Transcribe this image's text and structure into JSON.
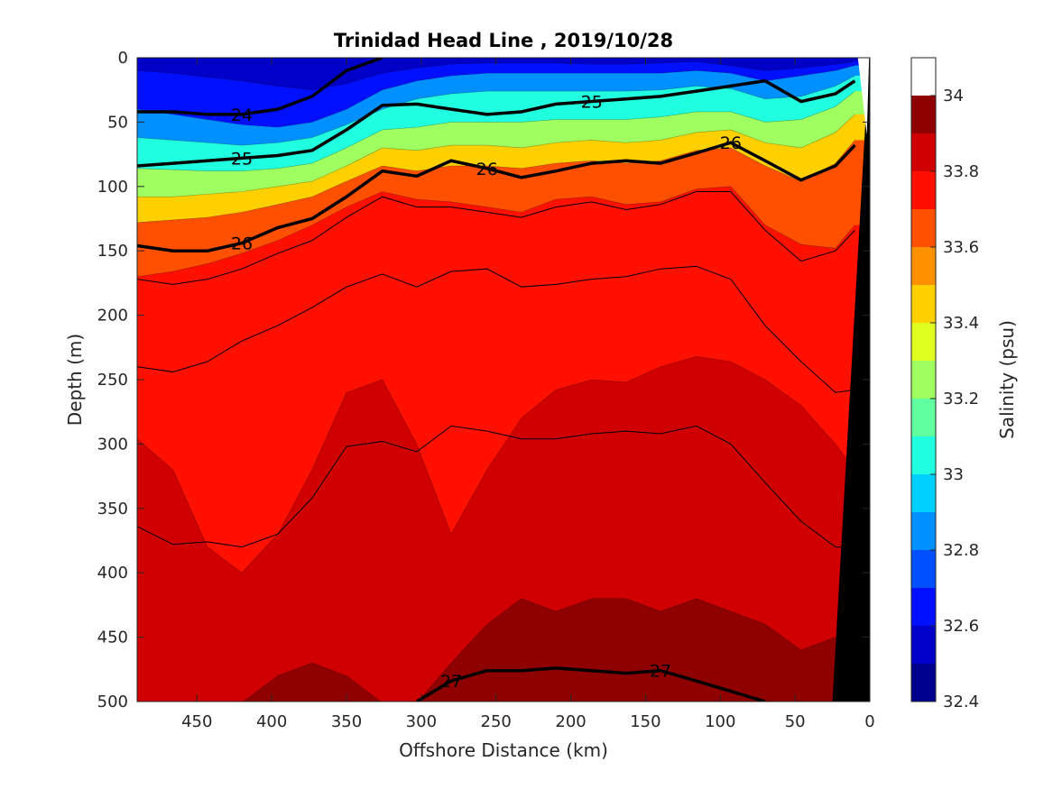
{
  "chart_data": {
    "type": "heatmap",
    "title": "Trinidad Head Line , 2019/10/28",
    "xlabel": "Offshore Distance (km)",
    "ylabel": "Depth (m)",
    "x_reversed": true,
    "y_reversed": true,
    "xlim": [
      490,
      0
    ],
    "ylim": [
      0,
      500
    ],
    "xticks": [
      "450",
      "400",
      "350",
      "300",
      "250",
      "200",
      "150",
      "100",
      "50",
      "0"
    ],
    "yticks": [
      "0",
      "50",
      "100",
      "150",
      "200",
      "250",
      "300",
      "350",
      "400",
      "450",
      "500"
    ],
    "colorbar": {
      "label": "Salinity (psu)",
      "tick_labels": [
        "32.4",
        "32.6",
        "32.8",
        "33",
        "33.2",
        "33.4",
        "33.6",
        "33.8",
        "34"
      ],
      "levels": [
        32.4,
        32.5,
        32.6,
        32.7,
        32.8,
        32.9,
        33.0,
        33.1,
        33.2,
        33.3,
        33.4,
        33.5,
        33.6,
        33.7,
        33.8,
        33.9,
        34.0,
        34.1
      ],
      "colors": [
        "#00008f",
        "#0000c8",
        "#0010ff",
        "#0050ff",
        "#0090ff",
        "#00d0ff",
        "#20ffdf",
        "#60ff9f",
        "#9fff60",
        "#dfff20",
        "#ffd000",
        "#ff9000",
        "#ff5000",
        "#ff1000",
        "#d00000",
        "#8f0000"
      ]
    },
    "salinity_isohalines": [
      {
        "level": 32.6,
        "depths": [
          10,
          12,
          15,
          18,
          22,
          25,
          20,
          12,
          8,
          5,
          4,
          4,
          4,
          5,
          5,
          4,
          3,
          6,
          10,
          8,
          5,
          3
        ]
      },
      {
        "level": 32.8,
        "depths": [
          40,
          44,
          48,
          52,
          54,
          50,
          40,
          25,
          18,
          14,
          12,
          12,
          12,
          12,
          12,
          12,
          10,
          12,
          18,
          14,
          10,
          6
        ]
      },
      {
        "level": 33.0,
        "depths": [
          62,
          64,
          66,
          68,
          66,
          62,
          52,
          40,
          32,
          28,
          26,
          26,
          26,
          26,
          26,
          25,
          22,
          24,
          32,
          30,
          22,
          14
        ]
      },
      {
        "level": 33.2,
        "depths": [
          86,
          87,
          88,
          88,
          86,
          82,
          70,
          56,
          54,
          50,
          50,
          50,
          48,
          48,
          48,
          46,
          42,
          42,
          50,
          48,
          38,
          26
        ]
      },
      {
        "level": 33.4,
        "depths": [
          108,
          108,
          106,
          104,
          100,
          96,
          84,
          70,
          72,
          68,
          68,
          70,
          66,
          64,
          66,
          64,
          58,
          56,
          66,
          70,
          58,
          44
        ]
      },
      {
        "level": 33.6,
        "depths": [
          128,
          126,
          124,
          120,
          114,
          108,
          96,
          84,
          88,
          84,
          84,
          86,
          82,
          80,
          82,
          80,
          72,
          70,
          84,
          96,
          82,
          64
        ]
      },
      {
        "level": 33.8,
        "depths": [
          170,
          166,
          160,
          152,
          142,
          130,
          116,
          104,
          110,
          112,
          116,
          120,
          110,
          108,
          114,
          112,
          102,
          100,
          130,
          145,
          148,
          130
        ]
      },
      {
        "level": 34.0,
        "depths": [
          296,
          320,
          380,
          400,
          370,
          320,
          260,
          250,
          300,
          370,
          320,
          280,
          258,
          250,
          252,
          240,
          232,
          236,
          250,
          270,
          300,
          320
        ]
      },
      {
        "level": 34.1,
        "depths": [
          501,
          501,
          501,
          501,
          480,
          470,
          480,
          501,
          501,
          470,
          440,
          420,
          430,
          420,
          420,
          430,
          420,
          430,
          440,
          460,
          450,
          501
        ]
      }
    ],
    "density_contours": [
      {
        "label": "24",
        "depths": [
          42,
          42,
          44,
          44,
          40,
          30,
          10,
          0,
          null,
          null,
          null,
          null,
          null,
          null,
          null,
          null,
          null,
          null,
          null,
          null,
          null,
          null
        ]
      },
      {
        "label": "25",
        "depths": [
          84,
          82,
          80,
          78,
          76,
          72,
          56,
          37,
          36,
          40,
          44,
          42,
          36,
          34,
          32,
          30,
          26,
          22,
          18,
          34,
          28,
          18
        ]
      },
      {
        "label": "26",
        "depths": [
          146,
          150,
          150,
          144,
          132,
          125,
          108,
          88,
          92,
          80,
          86,
          93,
          88,
          82,
          80,
          82,
          74,
          66,
          80,
          95,
          84,
          68
        ]
      },
      {
        "label": "27",
        "depths": [
          null,
          null,
          null,
          null,
          null,
          null,
          null,
          null,
          500,
          484,
          476,
          476,
          474,
          476,
          478,
          476,
          484,
          492,
          500,
          null,
          null,
          null
        ]
      }
    ],
    "thin_density_contours": [
      {
        "depths": [
          172,
          176,
          172,
          164,
          152,
          142,
          124,
          108,
          116,
          116,
          120,
          124,
          116,
          112,
          118,
          114,
          104,
          104,
          134,
          158,
          150,
          134
        ]
      },
      {
        "depths": [
          240,
          244,
          236,
          220,
          208,
          194,
          178,
          168,
          178,
          166,
          164,
          178,
          176,
          172,
          170,
          164,
          162,
          172,
          208,
          236,
          260,
          258
        ]
      },
      {
        "depths": [
          364,
          378,
          376,
          380,
          370,
          342,
          302,
          298,
          306,
          286,
          290,
          296,
          296,
          292,
          290,
          292,
          286,
          300,
          330,
          360,
          380,
          380
        ]
      }
    ],
    "stations_km": [
      490,
      466,
      443,
      420,
      396,
      373,
      350,
      326,
      303,
      280,
      256,
      233,
      210,
      186,
      163,
      140,
      116,
      93,
      70,
      46,
      23,
      10
    ],
    "bathymetry_shading": "black wedge near shore (0–25 km), full depth at 25 km tapering to surface at 0 km"
  }
}
